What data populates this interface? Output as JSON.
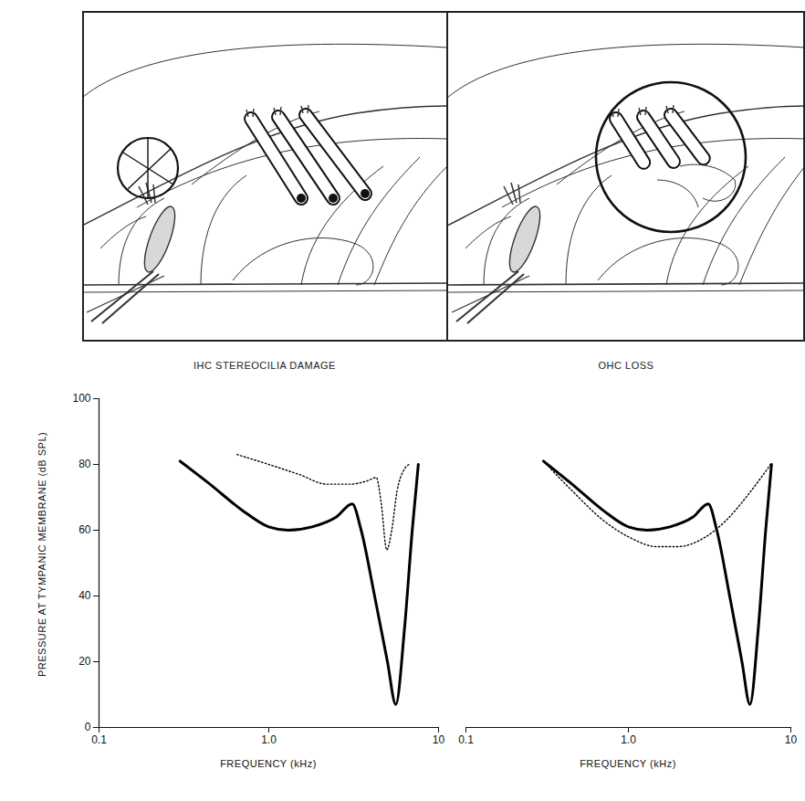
{
  "chart_data": [
    {
      "type": "line",
      "title": "IHC STEREOCILIA DAMAGE",
      "x_label": "FREQUENCY (kHz)",
      "y_label": "PRESSURE AT TYMPANIC MEMBRANE (dB SPL)",
      "log": "x",
      "xlim": [
        0.1,
        10
      ],
      "xticks": [
        0.1,
        {
          "value": 1,
          "label": "1.0"
        },
        10
      ],
      "ylim": [
        0,
        100
      ],
      "yticks": [
        0,
        20,
        40,
        60,
        80,
        100
      ],
      "series": [
        {
          "color": "#000000",
          "line_style": "solid",
          "x": [
            0.3,
            0.45,
            0.7,
            1.0,
            1.3,
            1.8,
            2.5,
            3.1,
            3.5,
            4.2,
            5.0,
            5.6,
            6.3,
            7.0,
            7.6
          ],
          "values": [
            81,
            74,
            66,
            61,
            60,
            61,
            64,
            68,
            60,
            40,
            20,
            7,
            30,
            60,
            80
          ]
        },
        {
          "color": "#000000",
          "line_style": "dotted",
          "x": [
            0.65,
            1.0,
            1.5,
            2.2,
            3.0,
            3.8,
            4.3,
            4.6,
            4.95,
            5.3,
            5.7,
            6.2,
            6.7
          ],
          "values": [
            83,
            80,
            77,
            74,
            74,
            75,
            76,
            68,
            54,
            60,
            72,
            78,
            80
          ]
        }
      ]
    },
    {
      "type": "line",
      "title": "OHC LOSS",
      "x_label": "FREQUENCY (kHz)",
      "log": "x",
      "xlim": [
        0.1,
        10
      ],
      "xticks": [
        0.1,
        {
          "value": 1,
          "label": "1.0"
        },
        10
      ],
      "ylim": [
        0,
        100
      ],
      "tick_labels": "x",
      "series": [
        {
          "color": "#000000",
          "line_style": "solid",
          "x": [
            0.3,
            0.45,
            0.7,
            1.0,
            1.3,
            1.8,
            2.5,
            3.1,
            3.5,
            4.2,
            5.0,
            5.6,
            6.3,
            7.0,
            7.6
          ],
          "values": [
            81,
            74,
            66,
            61,
            60,
            61,
            64,
            68,
            60,
            40,
            20,
            7,
            30,
            60,
            80
          ]
        },
        {
          "color": "#000000",
          "line_style": "dotted",
          "x": [
            0.3,
            0.45,
            0.7,
            1.0,
            1.5,
            2.0,
            3.0,
            4.0,
            5.5,
            7.5
          ],
          "values": [
            81,
            72,
            63,
            58,
            55,
            55,
            58,
            63,
            71,
            80
          ]
        }
      ]
    }
  ]
}
